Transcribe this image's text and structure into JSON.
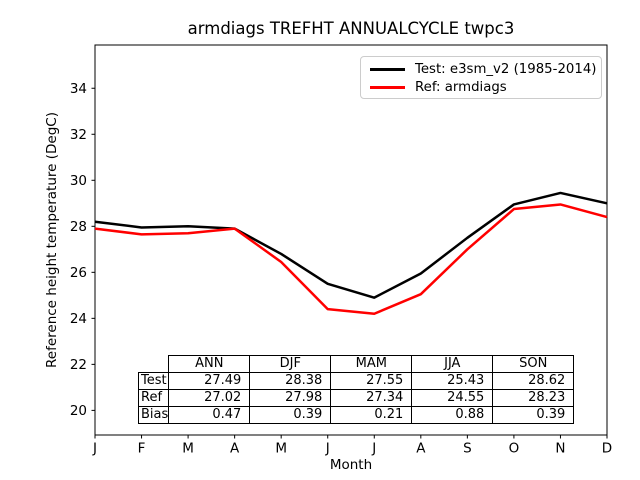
{
  "title": "armdiags TREFHT ANNUALCYCLE twpc3",
  "axes": {
    "ylabel": "Reference height temperature (DegC)",
    "xlabel": "Month"
  },
  "legend": {
    "entries": [
      {
        "label": "Test: e3sm_v2 (1985-2014)",
        "color": "#000000"
      },
      {
        "label": "Ref: armdiags",
        "color": "#ff0000"
      }
    ]
  },
  "chart_data": {
    "type": "line",
    "title": "armdiags TREFHT ANNUALCYCLE twpc3",
    "xlabel": "Month",
    "ylabel": "Reference height temperature (DegC)",
    "x": [
      1,
      2,
      3,
      4,
      5,
      6,
      7,
      8,
      9,
      10,
      11,
      12
    ],
    "xticklabels": [
      "J",
      "F",
      "M",
      "A",
      "M",
      "J",
      "J",
      "A",
      "S",
      "O",
      "N",
      "D"
    ],
    "yticks": [
      20,
      22,
      24,
      26,
      28,
      30,
      32,
      34
    ],
    "ylim": [
      18.93,
      35.88
    ],
    "grid": false,
    "legend_position": "upper right",
    "series": [
      {
        "name": "Test: e3sm_v2 (1985-2014)",
        "color": "#000000",
        "values": [
          28.2,
          27.95,
          28.0,
          27.9,
          26.8,
          25.5,
          24.9,
          25.95,
          27.5,
          28.95,
          29.45,
          29.0
        ]
      },
      {
        "name": "Ref: armdiags",
        "color": "#ff0000",
        "values": [
          27.9,
          27.65,
          27.7,
          27.9,
          26.45,
          24.4,
          24.2,
          25.05,
          27.0,
          28.75,
          28.95,
          28.4
        ]
      }
    ]
  },
  "table": {
    "columns": [
      "ANN",
      "DJF",
      "MAM",
      "JJA",
      "SON"
    ],
    "rows": [
      {
        "label": "Test",
        "values": [
          "27.49",
          "28.38",
          "27.55",
          "25.43",
          "28.62"
        ]
      },
      {
        "label": "Ref",
        "values": [
          "27.02",
          "27.98",
          "27.34",
          "24.55",
          "28.23"
        ]
      },
      {
        "label": "Bias",
        "values": [
          "0.47",
          "0.39",
          "0.21",
          "0.88",
          "0.39"
        ]
      }
    ]
  }
}
